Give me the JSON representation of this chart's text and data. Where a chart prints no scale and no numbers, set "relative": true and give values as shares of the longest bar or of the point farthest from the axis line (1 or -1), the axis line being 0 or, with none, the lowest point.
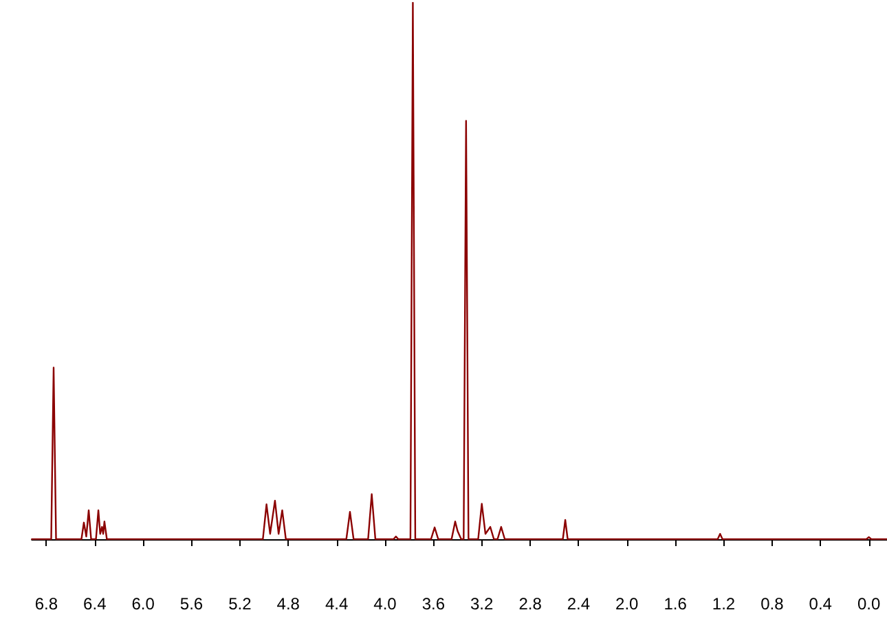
{
  "chart_data": {
    "type": "line",
    "relative": true,
    "marker": "none",
    "xlim": [
      6.92,
      -0.15
    ],
    "xticks": [
      {
        "value": 6.8,
        "label": "6.8"
      },
      6.4,
      {
        "value": 6.0,
        "label": "6.0"
      },
      5.6,
      5.2,
      4.8,
      4.4,
      {
        "value": 4.0,
        "label": "4.0"
      },
      3.6,
      3.2,
      2.8,
      2.4,
      {
        "value": 2.0,
        "label": "2.0"
      },
      1.6,
      1.2,
      0.8,
      0.4,
      {
        "value": 0.0,
        "label": "0.0"
      }
    ],
    "series": [
      {
        "color": "#8b0000",
        "x": [
          6.92,
          6.76,
          6.74,
          6.72,
          6.51,
          6.49,
          6.47,
          6.45,
          6.43,
          6.39,
          6.37,
          6.355,
          6.34,
          6.33,
          6.32,
          6.3,
          5.01,
          4.98,
          4.95,
          4.91,
          4.88,
          4.85,
          4.82,
          4.32,
          4.29,
          4.26,
          4.14,
          4.11,
          4.08,
          3.93,
          3.91,
          3.89,
          3.79,
          3.77,
          3.75,
          3.62,
          3.59,
          3.56,
          3.45,
          3.42,
          3.4,
          3.37,
          3.35,
          3.33,
          3.31,
          3.23,
          3.2,
          3.17,
          3.13,
          3.1,
          3.07,
          3.04,
          3.01,
          2.53,
          2.51,
          2.49,
          1.25,
          1.23,
          1.21,
          0.02,
          0.0,
          -0.02,
          -0.15
        ],
        "values": [
          0,
          0,
          0.32,
          0,
          0,
          0.031,
          0.005,
          0.054,
          0,
          0,
          0.054,
          0.01,
          0.023,
          0.01,
          0.033,
          0,
          0,
          0.065,
          0.01,
          0.072,
          0.01,
          0.054,
          0,
          0,
          0.051,
          0,
          0,
          0.084,
          0,
          0,
          0.005,
          0,
          0,
          1,
          0,
          0,
          0.022,
          0,
          0,
          0.033,
          0.015,
          0,
          0,
          0.78,
          0,
          0,
          0.066,
          0.01,
          0.023,
          0,
          0,
          0.023,
          0,
          0,
          0.036,
          0,
          0,
          0.01,
          0,
          0,
          0.004,
          0,
          0
        ]
      }
    ]
  }
}
